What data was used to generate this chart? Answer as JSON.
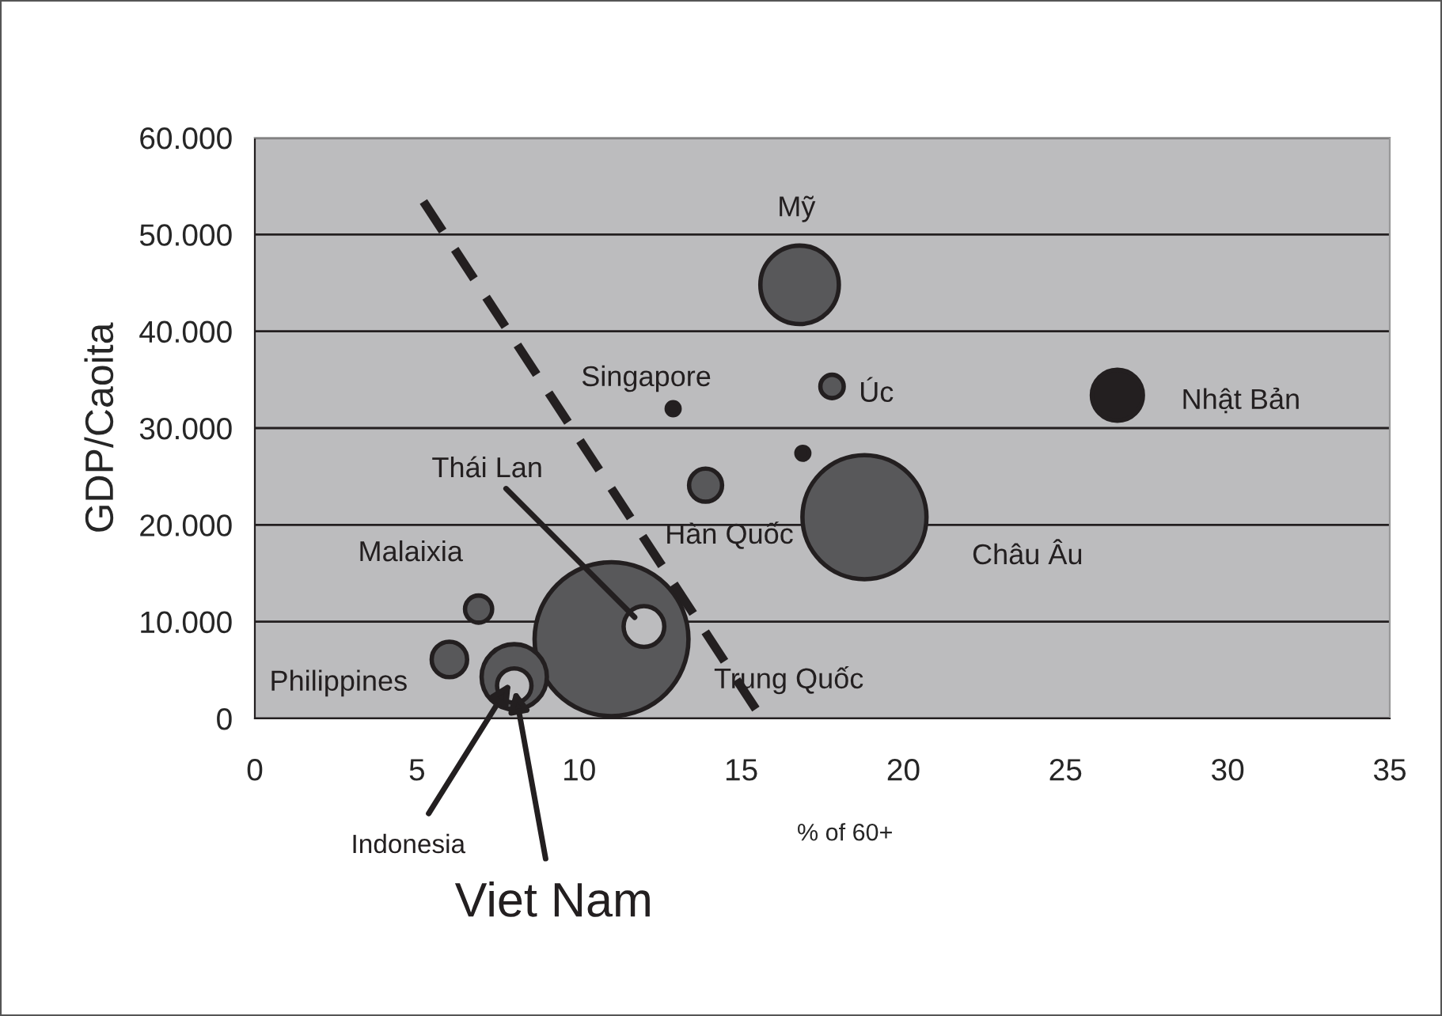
{
  "chart_data": {
    "type": "bubble",
    "xlabel": "% of 60+",
    "ylabel": "GDP/Caoita",
    "xlim": [
      0,
      35
    ],
    "xticks": [
      0,
      5,
      10,
      15,
      20,
      25,
      30,
      35
    ],
    "ylim": [
      0,
      60000
    ],
    "yticks": [
      0,
      {
        "value": 10000,
        "label": "10.000"
      },
      {
        "value": 20000,
        "label": "20.000"
      },
      {
        "value": 30000,
        "label": "30.000"
      },
      {
        "value": 40000,
        "label": "40.000"
      },
      {
        "value": 50000,
        "label": "50.000"
      },
      {
        "value": 60000,
        "label": "60.000"
      }
    ],
    "grid": "y",
    "series": [
      {
        "x": [
          16.8,
          17.8,
          12.9,
          26.6,
          16.9,
          13.9,
          18.8,
          6.9,
          6.0,
          8.0,
          8.0,
          11.0,
          12.0
        ],
        "values": [
          44800,
          34300,
          32000,
          33400,
          27400,
          24100,
          20800,
          11300,
          6100,
          4300,
          3400,
          8200,
          9500
        ],
        "sizes": [
          0.26,
          0.023,
          0.007,
          0.11,
          0.007,
          0.046,
          0.65,
          0.031,
          0.053,
          0.18,
          0.05,
          1,
          0.07
        ],
        "colors": [
          "#58585a",
          "#58585a",
          "#231f20",
          "#231f20",
          "#231f20",
          "#58585a",
          "#58585a",
          "#58585a",
          "#58585a",
          "#58585a",
          "#bcbcbe",
          "#58585a",
          "#bcbcbe"
        ]
      },
      {
        "type": "line",
        "x": [
          5.2,
          15.6
        ],
        "values": [
          53400,
          200
        ],
        "color": "#231f20",
        "line_style": "dashed"
      }
    ],
    "annotations": [
      "Mỹ",
      "Úc",
      "Singapore",
      "Nhật Bản",
      "Hàn Quốc",
      "Châu Âu",
      "Malaixia",
      "Philippines",
      "Indonesia",
      {
        "text": "Viet Nam",
        "x": 8.0,
        "y": 3400
      },
      "Trung Quốc",
      {
        "text": "Thái Lan",
        "x": 12.0,
        "y": 9500
      }
    ]
  }
}
